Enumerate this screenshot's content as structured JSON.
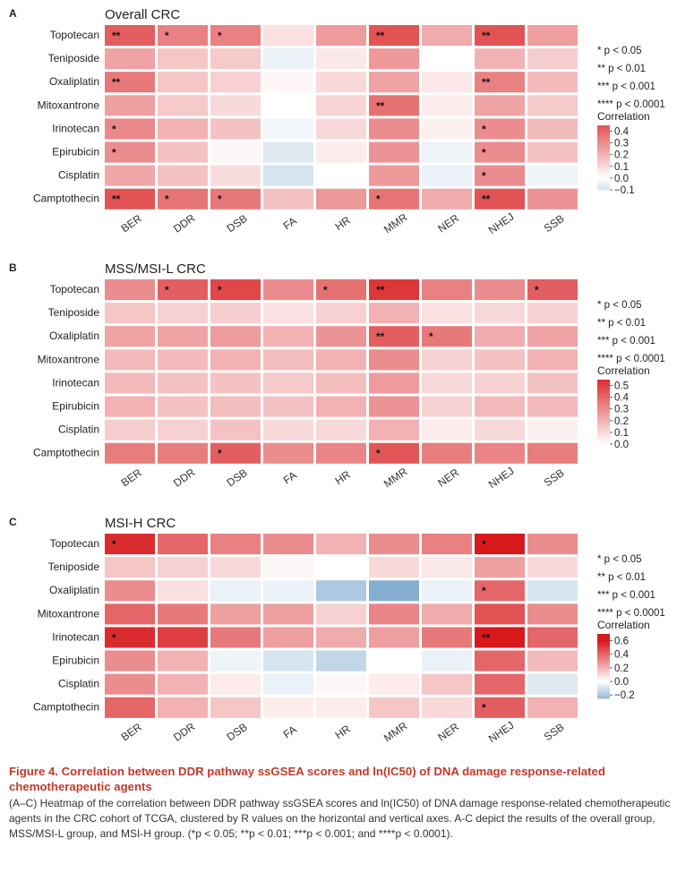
{
  "chart_data": [
    {
      "type": "heatmap",
      "panel_label": "A",
      "title": "Overall CRC",
      "rows": [
        "Topotecan",
        "Teniposide",
        "Oxaliplatin",
        "Mitoxantrone",
        "Irinotecan",
        "Epirubicin",
        "Cisplatin",
        "Camptothecin"
      ],
      "columns": [
        "BER",
        "DDR",
        "DSB",
        "FA",
        "HR",
        "MMR",
        "NER",
        "NHEJ",
        "SSB"
      ],
      "values": [
        [
          0.42,
          0.33,
          0.33,
          0.08,
          0.26,
          0.45,
          0.22,
          0.45,
          0.25
        ],
        [
          0.24,
          0.15,
          0.14,
          -0.05,
          0.06,
          0.27,
          0.0,
          0.2,
          0.13
        ],
        [
          0.35,
          0.15,
          0.12,
          0.02,
          0.1,
          0.24,
          0.06,
          0.33,
          0.18
        ],
        [
          0.25,
          0.14,
          0.1,
          0.0,
          0.11,
          0.37,
          0.05,
          0.24,
          0.14
        ],
        [
          0.31,
          0.2,
          0.16,
          -0.03,
          0.1,
          0.3,
          0.04,
          0.3,
          0.18
        ],
        [
          0.3,
          0.16,
          0.02,
          -0.08,
          0.05,
          0.28,
          -0.04,
          0.3,
          0.16
        ],
        [
          0.23,
          0.16,
          0.09,
          -0.1,
          0.0,
          0.27,
          -0.05,
          0.3,
          -0.04
        ],
        [
          0.45,
          0.36,
          0.35,
          0.16,
          0.27,
          0.36,
          0.22,
          0.45,
          0.28
        ]
      ],
      "significance": [
        [
          "**",
          "*",
          "*",
          "",
          "",
          "**",
          "",
          "**",
          ""
        ],
        [
          "",
          "",
          "",
          "",
          "",
          "",
          "",
          "",
          ""
        ],
        [
          "**",
          "",
          "",
          "",
          "",
          "",
          "",
          "**",
          ""
        ],
        [
          "",
          "",
          "",
          "",
          "",
          "**",
          "",
          "",
          ""
        ],
        [
          "*",
          "",
          "",
          "",
          "",
          "",
          "",
          "*",
          ""
        ],
        [
          "*",
          "",
          "",
          "",
          "",
          "",
          "",
          "*",
          ""
        ],
        [
          "",
          "",
          "",
          "",
          "",
          "",
          "",
          "*",
          ""
        ],
        [
          "**",
          "*",
          "*",
          "",
          "",
          "*",
          "",
          "**",
          ""
        ]
      ],
      "legend_title": "Correlation",
      "colorbar_ticks": [
        "0.4",
        "0.3",
        "0.2",
        "0.1",
        "0.0",
        "−0.1"
      ],
      "colorbar_range": [
        -0.1,
        0.45
      ],
      "sig_legend": [
        "* p < 0.05",
        "** p < 0.01",
        "*** p < 0.001",
        "**** p < 0.0001"
      ]
    },
    {
      "type": "heatmap",
      "panel_label": "B",
      "title": "MSS/MSI-L CRC",
      "rows": [
        "Topotecan",
        "Teniposide",
        "Oxaliplatin",
        "Mitoxantrone",
        "Irinotecan",
        "Epirubicin",
        "Cisplatin",
        "Camptothecin"
      ],
      "columns": [
        "BER",
        "DDR",
        "DSB",
        "FA",
        "HR",
        "MMR",
        "NER",
        "NHEJ",
        "SSB"
      ],
      "values": [
        [
          0.3,
          0.42,
          0.48,
          0.3,
          0.37,
          0.52,
          0.33,
          0.3,
          0.42
        ],
        [
          0.15,
          0.12,
          0.13,
          0.08,
          0.12,
          0.2,
          0.08,
          0.1,
          0.12
        ],
        [
          0.24,
          0.24,
          0.26,
          0.2,
          0.28,
          0.42,
          0.35,
          0.22,
          0.24
        ],
        [
          0.18,
          0.18,
          0.2,
          0.17,
          0.2,
          0.3,
          0.12,
          0.16,
          0.2
        ],
        [
          0.18,
          0.16,
          0.16,
          0.14,
          0.17,
          0.26,
          0.1,
          0.12,
          0.16
        ],
        [
          0.2,
          0.16,
          0.17,
          0.16,
          0.2,
          0.28,
          0.12,
          0.18,
          0.18
        ],
        [
          0.13,
          0.12,
          0.16,
          0.1,
          0.1,
          0.2,
          0.05,
          0.1,
          0.04
        ],
        [
          0.34,
          0.34,
          0.42,
          0.3,
          0.32,
          0.44,
          0.34,
          0.32,
          0.34
        ]
      ],
      "significance": [
        [
          "",
          "*",
          "*",
          "",
          "*",
          "**",
          "",
          "",
          "*"
        ],
        [
          "",
          "",
          "",
          "",
          "",
          "",
          "",
          "",
          ""
        ],
        [
          "",
          "",
          "",
          "",
          "",
          "**",
          "*",
          "",
          ""
        ],
        [
          "",
          "",
          "",
          "",
          "",
          "",
          "",
          "",
          ""
        ],
        [
          "",
          "",
          "",
          "",
          "",
          "",
          "",
          "",
          ""
        ],
        [
          "",
          "",
          "",
          "",
          "",
          "",
          "",
          "",
          ""
        ],
        [
          "",
          "",
          "",
          "",
          "",
          "",
          "",
          "",
          ""
        ],
        [
          "",
          "",
          "*",
          "",
          "",
          "*",
          "",
          "",
          ""
        ]
      ],
      "legend_title": "Correlation",
      "colorbar_ticks": [
        "0.5",
        "0.4",
        "0.3",
        "0.2",
        "0.1",
        "0.0"
      ],
      "colorbar_range": [
        0.0,
        0.55
      ],
      "sig_legend": [
        "* p < 0.05",
        "** p < 0.01",
        "*** p < 0.001",
        "**** p < 0.0001"
      ]
    },
    {
      "type": "heatmap",
      "panel_label": "C",
      "title": "MSI-H CRC",
      "rows": [
        "Topotecan",
        "Teniposide",
        "Oxaliplatin",
        "Mitoxantrone",
        "Irinotecan",
        "Epirubicin",
        "Cisplatin",
        "Camptothecin"
      ],
      "columns": [
        "BER",
        "DDR",
        "DSB",
        "FA",
        "HR",
        "MMR",
        "NER",
        "NHEJ",
        "SSB"
      ],
      "values": [
        [
          0.55,
          0.4,
          0.33,
          0.3,
          0.2,
          0.3,
          0.33,
          0.6,
          0.3
        ],
        [
          0.15,
          0.12,
          0.1,
          0.02,
          0.0,
          0.1,
          0.06,
          0.25,
          0.1
        ],
        [
          0.3,
          0.08,
          -0.05,
          -0.05,
          -0.2,
          -0.3,
          -0.05,
          0.4,
          -0.1
        ],
        [
          0.4,
          0.35,
          0.25,
          0.25,
          0.12,
          0.32,
          0.22,
          0.45,
          0.3
        ],
        [
          0.55,
          0.5,
          0.35,
          0.25,
          0.22,
          0.25,
          0.35,
          0.68,
          0.4
        ],
        [
          0.3,
          0.2,
          -0.04,
          -0.1,
          -0.15,
          0.0,
          -0.05,
          0.4,
          0.18
        ],
        [
          0.3,
          0.2,
          0.05,
          -0.05,
          0.02,
          0.05,
          0.15,
          0.4,
          -0.08
        ],
        [
          0.4,
          0.2,
          0.15,
          0.05,
          0.05,
          0.15,
          0.1,
          0.42,
          0.2
        ]
      ],
      "significance": [
        [
          "*",
          "",
          "",
          "",
          "",
          "",
          "",
          "*",
          ""
        ],
        [
          "",
          "",
          "",
          "",
          "",
          "",
          "",
          "",
          ""
        ],
        [
          "",
          "",
          "",
          "",
          "",
          "",
          "",
          "*",
          ""
        ],
        [
          "",
          "",
          "",
          "",
          "",
          "",
          "",
          "",
          ""
        ],
        [
          "*",
          "",
          "",
          "",
          "",
          "",
          "",
          "**",
          ""
        ],
        [
          "",
          "",
          "",
          "",
          "",
          "",
          "",
          "",
          ""
        ],
        [
          "",
          "",
          "",
          "",
          "",
          "",
          "",
          "",
          ""
        ],
        [
          "",
          "",
          "",
          "",
          "",
          "",
          "",
          "*",
          ""
        ]
      ],
      "legend_title": "Correlation",
      "colorbar_ticks": [
        "0.6",
        "0.4",
        "0.2",
        "0.0",
        "−0.2"
      ],
      "colorbar_range": [
        -0.25,
        0.7
      ],
      "sig_legend": [
        "* p < 0.05",
        "** p < 0.01",
        "*** p < 0.001",
        "**** p < 0.0001"
      ]
    }
  ],
  "caption": {
    "title": "Figure 4.  Correlation between DDR pathway ssGSEA scores and ln(IC50) of DNA damage response-related chemotherapeutic agents",
    "body": "(A–C) Heatmap of the correlation between DDR pathway ssGSEA scores and ln(IC50) of DNA damage response-related chemotherapeutic agents in the CRC cohort of TCGA, clustered by R values on the horizontal and vertical axes. A-C depict the results of the overall group, MSS/MSI-L group, and MSI-H group. (*p < 0.05; **p < 0.01; ***p < 0.001; and ****p < 0.0001)."
  },
  "colors": {
    "positive": "#d7191c",
    "neutral": "#ffffff",
    "negative": "#6f9fc8",
    "caption_title": "#c0392b"
  }
}
